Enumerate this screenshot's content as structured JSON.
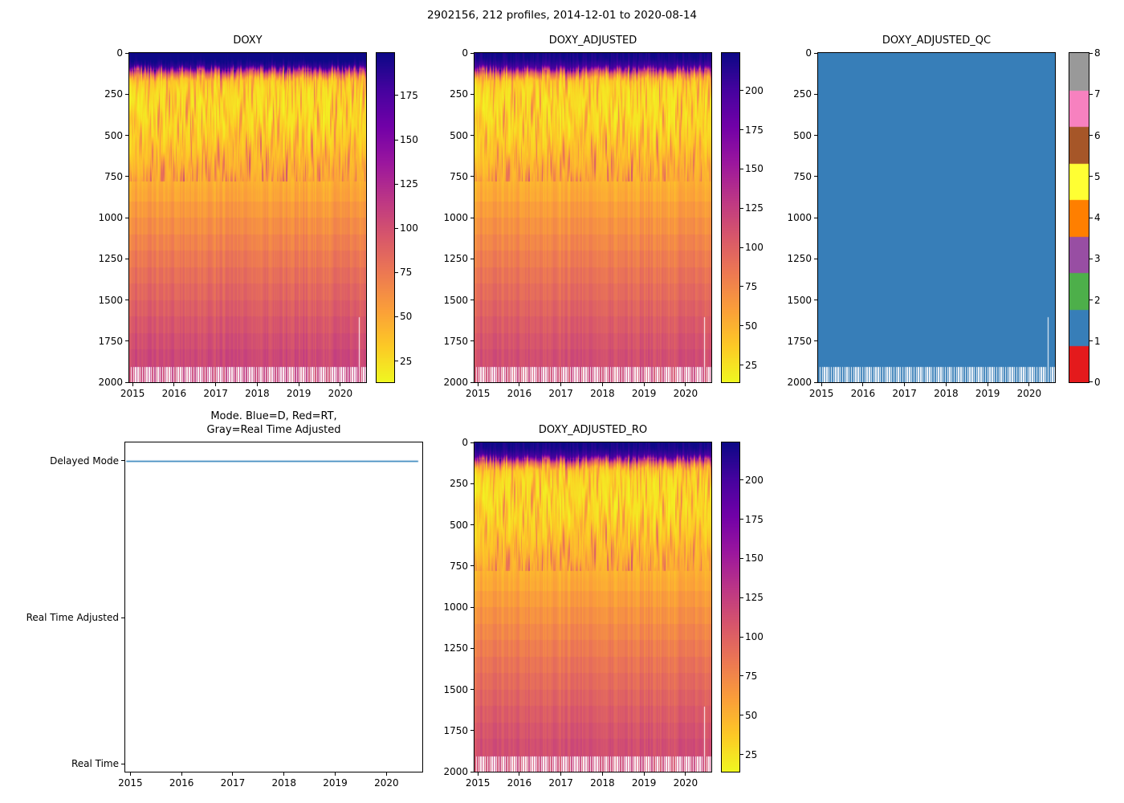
{
  "figure": {
    "title": "2902156, 212 profiles, 2014-12-01 to 2020-08-14",
    "background": "#ffffff"
  },
  "colormaps": {
    "plasma_r": [
      "#f0f921",
      "#fdca26",
      "#fb9f3a",
      "#ed7953",
      "#d8576b",
      "#bd3786",
      "#9c179e",
      "#7201a8",
      "#46039f",
      "#0d0887"
    ]
  },
  "chart_data": [
    {
      "id": "doxy",
      "type": "heatmap",
      "title": "DOXY",
      "x_range": [
        2014.92,
        2020.62
      ],
      "y_range": [
        0,
        2000
      ],
      "x_ticks": [
        2015,
        2016,
        2017,
        2018,
        2019,
        2020
      ],
      "y_ticks": [
        0,
        250,
        500,
        750,
        1000,
        1250,
        1500,
        1750,
        2000
      ],
      "n_profiles": 212,
      "colormap": "plasma_r",
      "vmin": 13,
      "vmax": 199,
      "value_scale": 1.0,
      "colorbar_ticks": [
        25,
        50,
        75,
        100,
        125,
        150,
        175
      ],
      "depth_profile_mean": [
        [
          0,
          206
        ],
        [
          40,
          200
        ],
        [
          80,
          184
        ],
        [
          110,
          95
        ],
        [
          150,
          33
        ],
        [
          200,
          23
        ],
        [
          300,
          20
        ],
        [
          400,
          22
        ],
        [
          500,
          27
        ],
        [
          600,
          34
        ],
        [
          700,
          41
        ],
        [
          800,
          48
        ],
        [
          900,
          55
        ],
        [
          1000,
          61
        ],
        [
          1100,
          67
        ],
        [
          1200,
          73
        ],
        [
          1300,
          79
        ],
        [
          1400,
          84
        ],
        [
          1500,
          89
        ],
        [
          1600,
          94
        ],
        [
          1700,
          99
        ],
        [
          1800,
          103
        ],
        [
          1900,
          107
        ],
        [
          2000,
          110
        ]
      ],
      "missing_profile": {
        "index": 205,
        "below_depth": 1600
      },
      "deep_comb": {
        "below_depth": 1906,
        "keep_every": 2
      }
    },
    {
      "id": "doxy_adjusted",
      "type": "heatmap",
      "title": "DOXY_ADJUSTED",
      "x_range": [
        2014.92,
        2020.62
      ],
      "y_range": [
        0,
        2000
      ],
      "x_ticks": [
        2015,
        2016,
        2017,
        2018,
        2019,
        2020
      ],
      "y_ticks": [
        0,
        250,
        500,
        750,
        1000,
        1250,
        1500,
        1750,
        2000
      ],
      "n_profiles": 212,
      "colormap": "plasma_r",
      "vmin": 14,
      "vmax": 224,
      "value_scale": 1.08,
      "colorbar_ticks": [
        25,
        50,
        75,
        100,
        125,
        150,
        175,
        200
      ],
      "depth_profile_mean": [
        [
          0,
          206
        ],
        [
          40,
          200
        ],
        [
          80,
          184
        ],
        [
          110,
          95
        ],
        [
          150,
          33
        ],
        [
          200,
          23
        ],
        [
          300,
          20
        ],
        [
          400,
          22
        ],
        [
          500,
          27
        ],
        [
          600,
          34
        ],
        [
          700,
          41
        ],
        [
          800,
          48
        ],
        [
          900,
          55
        ],
        [
          1000,
          61
        ],
        [
          1100,
          67
        ],
        [
          1200,
          73
        ],
        [
          1300,
          79
        ],
        [
          1400,
          84
        ],
        [
          1500,
          89
        ],
        [
          1600,
          94
        ],
        [
          1700,
          99
        ],
        [
          1800,
          103
        ],
        [
          1900,
          107
        ],
        [
          2000,
          110
        ]
      ],
      "missing_profile": {
        "index": 205,
        "below_depth": 1600
      },
      "deep_comb": {
        "below_depth": 1906,
        "keep_every": 2
      }
    },
    {
      "id": "doxy_adjusted_qc",
      "type": "heatmap",
      "title": "DOXY_ADJUSTED_QC",
      "x_range": [
        2014.92,
        2020.62
      ],
      "y_range": [
        0,
        2000
      ],
      "x_ticks": [
        2015,
        2016,
        2017,
        2018,
        2019,
        2020
      ],
      "y_ticks": [
        0,
        250,
        500,
        750,
        1000,
        1250,
        1500,
        1750,
        2000
      ],
      "n_profiles": 212,
      "constant_value": 1,
      "constant_value_meaning": "QC flag 1 (good data) everywhere",
      "constant_color": "#377eb8",
      "colorbar_type": "discrete",
      "colorbar_ticks": [
        0,
        1,
        2,
        3,
        4,
        5,
        6,
        7,
        8
      ],
      "palette": [
        "#e41a1c",
        "#377eb8",
        "#4daf4a",
        "#984ea3",
        "#ff7f00",
        "#ffff33",
        "#a65628",
        "#f781bf",
        "#999999"
      ],
      "missing_profile": {
        "index": 205,
        "below_depth": 1600
      },
      "deep_comb": {
        "below_depth": 1906,
        "keep_every": 2
      }
    },
    {
      "id": "mode",
      "type": "line",
      "title": "Mode. Blue=D, Red=RT,\nGray=Real Time Adjusted",
      "x_range": [
        2014.9,
        2020.7
      ],
      "x_ticks": [
        2015,
        2016,
        2017,
        2018,
        2019,
        2020
      ],
      "y_categories": [
        "Delayed Mode",
        "Real Time Adjusted",
        "Real Time"
      ],
      "y_positions": {
        "Delayed Mode": 0.056,
        "Real Time Adjusted": 0.532,
        "Real Time": 0.976
      },
      "series": [
        {
          "name": "mode",
          "color": "#1f77b4",
          "value": "Delayed Mode",
          "x_start": 2014.92,
          "x_end": 2020.62
        }
      ],
      "legend_note": "Blue=D, Red=RT, Gray=Real Time Adjusted"
    },
    {
      "id": "doxy_adjusted_ro",
      "type": "heatmap",
      "title": "DOXY_ADJUSTED_RO",
      "x_range": [
        2014.92,
        2020.62
      ],
      "y_range": [
        0,
        2000
      ],
      "x_ticks": [
        2015,
        2016,
        2017,
        2018,
        2019,
        2020
      ],
      "y_ticks": [
        0,
        250,
        500,
        750,
        1000,
        1250,
        1500,
        1750,
        2000
      ],
      "n_profiles": 212,
      "colormap": "plasma_r",
      "vmin": 14,
      "vmax": 224,
      "value_scale": 1.08,
      "colorbar_ticks": [
        25,
        50,
        75,
        100,
        125,
        150,
        175,
        200
      ],
      "depth_profile_mean": [
        [
          0,
          206
        ],
        [
          40,
          200
        ],
        [
          80,
          184
        ],
        [
          110,
          95
        ],
        [
          150,
          33
        ],
        [
          200,
          23
        ],
        [
          300,
          20
        ],
        [
          400,
          22
        ],
        [
          500,
          27
        ],
        [
          600,
          34
        ],
        [
          700,
          41
        ],
        [
          800,
          48
        ],
        [
          900,
          55
        ],
        [
          1000,
          61
        ],
        [
          1100,
          67
        ],
        [
          1200,
          73
        ],
        [
          1300,
          79
        ],
        [
          1400,
          84
        ],
        [
          1500,
          89
        ],
        [
          1600,
          94
        ],
        [
          1700,
          99
        ],
        [
          1800,
          103
        ],
        [
          1900,
          107
        ],
        [
          2000,
          110
        ]
      ],
      "missing_profile": {
        "index": 205,
        "below_depth": 1600
      },
      "deep_comb": {
        "below_depth": 1906,
        "keep_every": 2
      }
    }
  ]
}
